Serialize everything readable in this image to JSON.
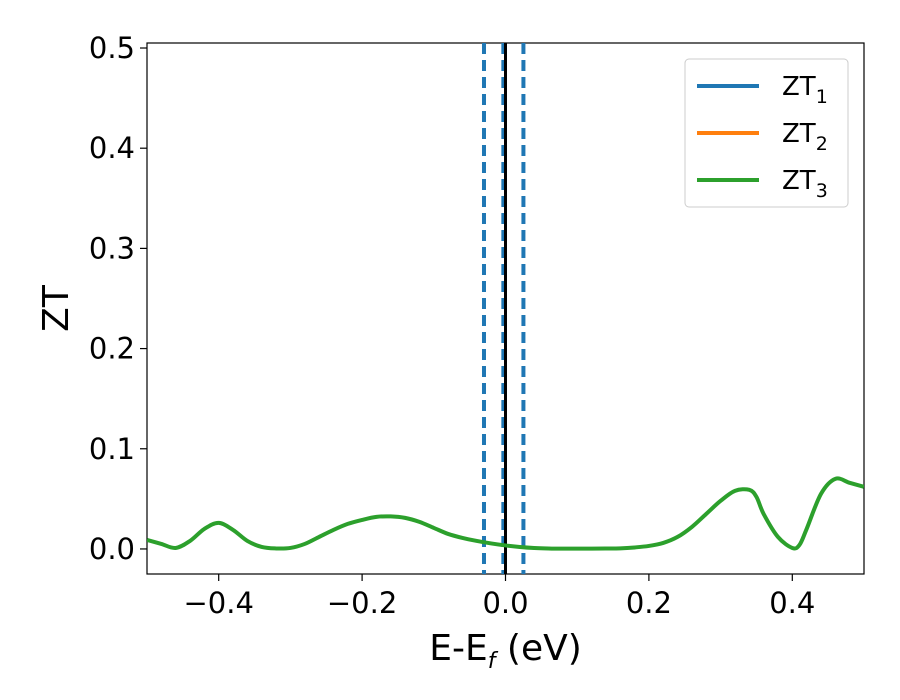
{
  "chart_data": {
    "type": "line",
    "title": "",
    "xlabel": {
      "base": "E-E",
      "sub": "f",
      "unit": " (eV)"
    },
    "ylabel": "ZT",
    "xlim": [
      -0.5,
      0.5
    ],
    "ylim": [
      -0.025,
      0.505
    ],
    "xticks": [
      -0.4,
      -0.2,
      0.0,
      0.2,
      0.4
    ],
    "xtick_labels": [
      "−0.4",
      "−0.2",
      "0.0",
      "0.2",
      "0.4"
    ],
    "yticks": [
      0.0,
      0.1,
      0.2,
      0.3,
      0.4,
      0.5
    ],
    "ytick_labels": [
      "0.0",
      "0.1",
      "0.2",
      "0.3",
      "0.4",
      "0.5"
    ],
    "grid": false,
    "legend": {
      "placement": "top-right"
    },
    "series": [
      {
        "name": "ZT",
        "sub": "1",
        "color": "#1f77b4",
        "x": [],
        "y": []
      },
      {
        "name": "ZT",
        "sub": "2",
        "color": "#ff7f0e",
        "x": [],
        "y": []
      },
      {
        "name": "ZT",
        "sub": "3",
        "color": "#2ca02c",
        "x": [
          -0.5,
          -0.48,
          -0.46,
          -0.44,
          -0.42,
          -0.4,
          -0.38,
          -0.36,
          -0.34,
          -0.32,
          -0.3,
          -0.28,
          -0.26,
          -0.24,
          -0.22,
          -0.2,
          -0.18,
          -0.16,
          -0.14,
          -0.12,
          -0.1,
          -0.08,
          -0.06,
          -0.04,
          -0.02,
          0.0,
          0.02,
          0.04,
          0.06,
          0.08,
          0.1,
          0.12,
          0.14,
          0.16,
          0.18,
          0.2,
          0.22,
          0.24,
          0.26,
          0.28,
          0.3,
          0.32,
          0.34,
          0.35,
          0.36,
          0.38,
          0.4,
          0.41,
          0.42,
          0.44,
          0.46,
          0.48,
          0.5
        ],
        "y": [
          0.009,
          0.005,
          0.001,
          0.008,
          0.02,
          0.026,
          0.019,
          0.008,
          0.002,
          0.0005,
          0.001,
          0.005,
          0.012,
          0.019,
          0.025,
          0.029,
          0.032,
          0.0325,
          0.031,
          0.027,
          0.021,
          0.015,
          0.011,
          0.008,
          0.0055,
          0.0035,
          0.002,
          0.001,
          0.0005,
          0.0003,
          0.0003,
          0.0003,
          0.0004,
          0.0006,
          0.0015,
          0.003,
          0.006,
          0.012,
          0.022,
          0.035,
          0.048,
          0.058,
          0.059,
          0.052,
          0.035,
          0.012,
          0.001,
          0.004,
          0.02,
          0.055,
          0.07,
          0.066,
          0.062
        ]
      }
    ],
    "vlines": [
      {
        "x": -0.03,
        "style": "dashed",
        "color": "#1f77b4"
      },
      {
        "x": -0.003,
        "style": "dashed",
        "color": "#1f77b4"
      },
      {
        "x": 0.025,
        "style": "dashed",
        "color": "#1f77b4"
      },
      {
        "x": 0.0,
        "style": "solid",
        "color": "#000000"
      }
    ]
  }
}
